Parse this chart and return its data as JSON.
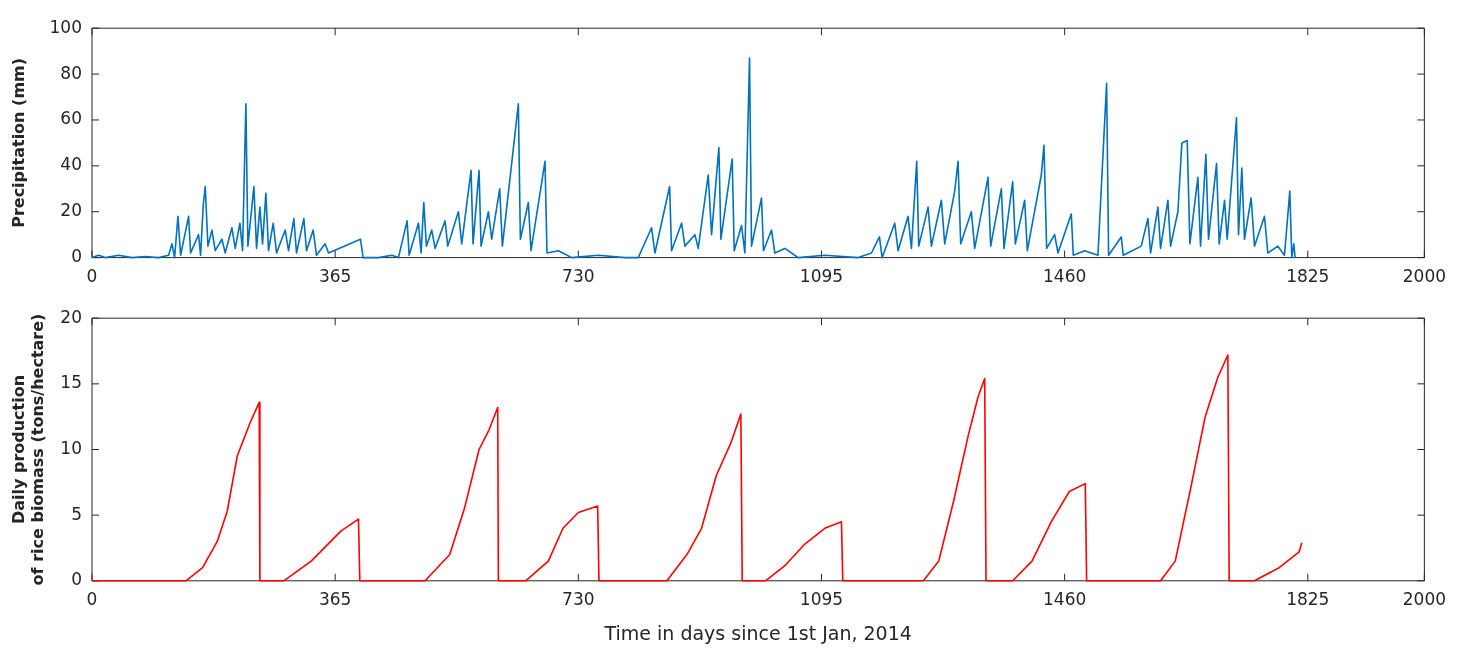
{
  "chart_data": [
    {
      "type": "line",
      "ylabel": "Precipitation (mm)",
      "xlim": [
        0,
        2000
      ],
      "xticks": [
        0,
        365,
        730,
        1095,
        1460,
        1825,
        2000
      ],
      "ylim": [
        0,
        100
      ],
      "yticks": [
        0,
        20,
        40,
        60,
        80,
        100
      ],
      "grid": false,
      "legend": false,
      "series": [
        {
          "color": "#0072bd",
          "x": [
            0,
            10,
            20,
            40,
            60,
            80,
            100,
            115,
            120,
            124,
            129,
            133,
            145,
            148,
            160,
            163,
            167,
            170,
            174,
            180,
            185,
            195,
            200,
            210,
            215,
            222,
            226,
            231,
            234,
            243,
            247,
            252,
            256,
            261,
            265,
            272,
            277,
            290,
            295,
            303,
            307,
            318,
            322,
            332,
            337,
            350,
            355,
            403,
            407,
            430,
            450,
            460,
            473,
            476,
            490,
            494,
            498,
            502,
            510,
            515,
            530,
            534,
            550,
            555,
            569,
            572,
            581,
            584,
            595,
            600,
            612,
            616,
            640,
            643,
            655,
            659,
            680,
            683,
            700,
            720,
            760,
            800,
            820,
            840,
            845,
            867,
            870,
            885,
            890,
            905,
            910,
            925,
            930,
            941,
            944,
            961,
            964,
            975,
            980,
            987,
            990,
            1005,
            1008,
            1020,
            1025,
            1040,
            1060,
            1100,
            1150,
            1170,
            1182,
            1186,
            1205,
            1210,
            1225,
            1230,
            1238,
            1241,
            1255,
            1260,
            1275,
            1280,
            1295,
            1300,
            1304,
            1320,
            1325,
            1345,
            1349,
            1365,
            1369,
            1382,
            1386,
            1400,
            1404,
            1425,
            1429,
            1433,
            1445,
            1450,
            1470,
            1473,
            1490,
            1510,
            1523,
            1526,
            1545,
            1548,
            1575,
            1585,
            1589,
            1600,
            1604,
            1615,
            1619,
            1630,
            1636,
            1644,
            1648,
            1660,
            1664,
            1672,
            1676,
            1688,
            1692,
            1700,
            1704,
            1718,
            1721,
            1726,
            1730,
            1740,
            1745,
            1760,
            1765,
            1780,
            1790,
            1798,
            1801,
            1804,
            1806
          ],
          "values": [
            0,
            1,
            0,
            1,
            0,
            0.5,
            0,
            1,
            6,
            0,
            18,
            1,
            18,
            2,
            10,
            1,
            23,
            31,
            5,
            12,
            3,
            8,
            2,
            13,
            4,
            15,
            3,
            67,
            5,
            31,
            4,
            22,
            6,
            28,
            3,
            15,
            2,
            12,
            3,
            17,
            2,
            17,
            3,
            12,
            1,
            6,
            2,
            8,
            0,
            0,
            1,
            0,
            16,
            1,
            15,
            2,
            24,
            5,
            12,
            4,
            16,
            5,
            20,
            6,
            38,
            6,
            38,
            5,
            20,
            8,
            30,
            5,
            67,
            8,
            24,
            3,
            42,
            2,
            3,
            0,
            1,
            0,
            0,
            13,
            2,
            31,
            3,
            15,
            5,
            10,
            4,
            36,
            10,
            48,
            8,
            43,
            3,
            14,
            2,
            87,
            5,
            26,
            3,
            12,
            2,
            4,
            0,
            1,
            0,
            2,
            9,
            0,
            15,
            3,
            18,
            4,
            42,
            5,
            22,
            5,
            25,
            6,
            29,
            42,
            6,
            20,
            4,
            35,
            5,
            30,
            4,
            33,
            6,
            25,
            3,
            36,
            49,
            4,
            10,
            2,
            19,
            1,
            3,
            1,
            76,
            1,
            9,
            1,
            5,
            17,
            2,
            22,
            4,
            25,
            5,
            20,
            50,
            51,
            6,
            35,
            5,
            45,
            8,
            41,
            6,
            25,
            8,
            61,
            10,
            39,
            8,
            26,
            5,
            18,
            2,
            5,
            1,
            29,
            0,
            6,
            0
          ]
        }
      ]
    },
    {
      "type": "line",
      "ylabel": "Daily production\nof rice biomass (tons/hectare)",
      "xlabel": "Time in days since 1st Jan, 2014",
      "xlim": [
        0,
        2000
      ],
      "xticks": [
        0,
        365,
        730,
        1095,
        1460,
        1825,
        2000
      ],
      "ylim": [
        0,
        20
      ],
      "yticks": [
        0,
        5,
        10,
        15,
        20
      ],
      "grid": false,
      "legend": false,
      "series": [
        {
          "color": "#ff0000",
          "x": [
            0,
            141,
            166,
            188,
            203,
            218,
            237,
            251,
            252,
            288,
            329,
            374,
            400,
            402,
            500,
            537,
            559,
            581,
            596,
            609,
            610,
            651,
            685,
            707,
            730,
            759,
            761,
            863,
            893,
            915,
            937,
            959,
            974,
            976,
            1011,
            1041,
            1070,
            1100,
            1125,
            1127,
            1248,
            1271,
            1293,
            1315,
            1330,
            1340,
            1342,
            1382,
            1411,
            1440,
            1467,
            1491,
            1493,
            1604,
            1626,
            1649,
            1671,
            1690,
            1705,
            1707,
            1745,
            1782,
            1812,
            1816
          ],
          "values": [
            0,
            0,
            1,
            3,
            5.3,
            9.5,
            12,
            13.6,
            0,
            0,
            1.5,
            3.8,
            4.7,
            0,
            0,
            2,
            5.5,
            10,
            11.5,
            13.2,
            0,
            0,
            1.5,
            4,
            5.2,
            5.7,
            0,
            0,
            2,
            4,
            8,
            10.5,
            12.7,
            0,
            0,
            1.2,
            2.8,
            4,
            4.5,
            0,
            0,
            1.5,
            6,
            11,
            14,
            15.4,
            0,
            0,
            1.5,
            4.5,
            6.8,
            7.4,
            0,
            0,
            1.5,
            7,
            12.5,
            15.5,
            17.2,
            0,
            0,
            1,
            2.2,
            2.9
          ]
        }
      ]
    }
  ]
}
